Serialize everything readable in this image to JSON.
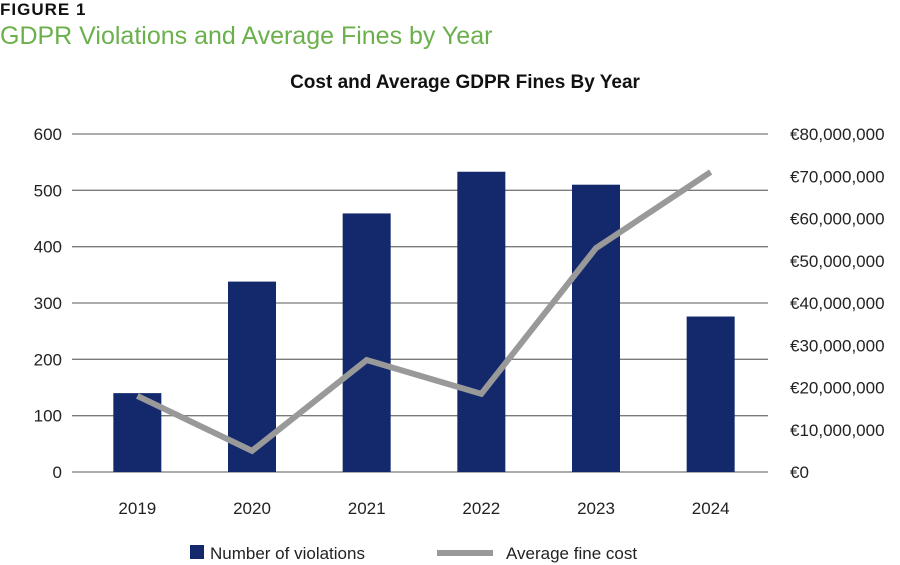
{
  "figure": {
    "label": "FIGURE 1",
    "title": "GDPR Violations and Average Fines by Year"
  },
  "chart_data": {
    "type": "bar",
    "title": "Cost and Average GDPR Fines By Year",
    "categories": [
      "2019",
      "2020",
      "2021",
      "2022",
      "2023",
      "2024"
    ],
    "series": [
      {
        "name": "Number of violations",
        "type": "bar",
        "axis": "left",
        "color": "#13296b",
        "values": [
          140,
          338,
          459,
          533,
          510,
          276
        ]
      },
      {
        "name": "Average fine cost",
        "type": "line",
        "axis": "right",
        "color": "#999999",
        "values": [
          18000000,
          5000000,
          26500000,
          18500000,
          53000000,
          71000000
        ]
      }
    ],
    "y_left": {
      "lim": [
        0,
        600
      ],
      "ticks": [
        0,
        100,
        200,
        300,
        400,
        500,
        600
      ],
      "tick_labels": [
        "0",
        "100",
        "200",
        "300",
        "400",
        "500",
        "600"
      ]
    },
    "y_right": {
      "lim": [
        0,
        80000000
      ],
      "ticks": [
        0,
        10000000,
        20000000,
        30000000,
        40000000,
        50000000,
        60000000,
        70000000,
        80000000
      ],
      "tick_labels": [
        "€0",
        "€10,000,000",
        "€20,000,000",
        "€30,000,000",
        "€40,000,000",
        "€50,000,000",
        "€60,000,000",
        "€70,000,000",
        "€80,000,000"
      ]
    },
    "grid": true,
    "legend_position": "bottom",
    "xlabel": "",
    "ylabel": ""
  }
}
